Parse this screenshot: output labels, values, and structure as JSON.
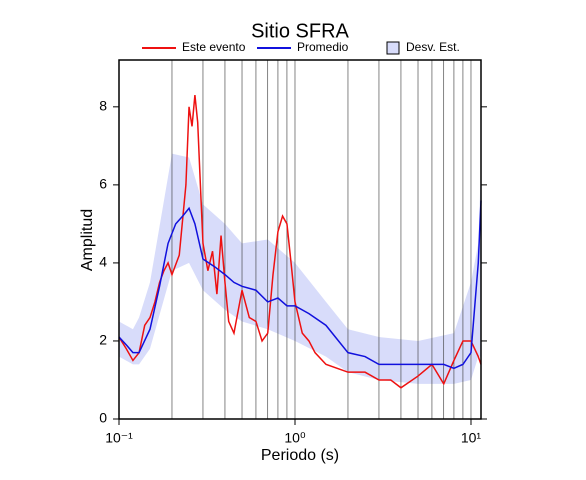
{
  "chart_data": {
    "type": "line",
    "title": "Sitio SFRA",
    "x_label": "Periodo (s)",
    "y_label": "Amplitud",
    "x_scale": "log",
    "xlim": [
      0.1,
      11.4
    ],
    "ylim": [
      0,
      9.2
    ],
    "xticks": [
      {
        "value": 0.1,
        "label": "10⁻¹"
      },
      {
        "value": 1,
        "label": "10⁰"
      },
      {
        "value": 10,
        "label": "10¹"
      }
    ],
    "x_grid": [
      0.1,
      0.2,
      0.3,
      0.4,
      0.5,
      0.6,
      0.7,
      0.8,
      0.9,
      1,
      2,
      3,
      4,
      5,
      6,
      7,
      8,
      9,
      10
    ],
    "yticks": [
      0,
      2,
      4,
      6,
      8
    ],
    "legend": "top",
    "band": {
      "name": "Desv. Est.",
      "color": "#d8dcfa",
      "x": [
        0.1,
        0.12,
        0.13,
        0.15,
        0.2,
        0.25,
        0.3,
        0.4,
        0.5,
        0.7,
        1,
        1.5,
        2,
        3,
        5,
        8,
        10,
        11,
        11.4
      ],
      "lower": [
        1.6,
        1.4,
        1.4,
        1.8,
        3.8,
        4.0,
        3.3,
        2.8,
        2.5,
        2.3,
        2.0,
        1.6,
        1.2,
        1.0,
        0.9,
        0.9,
        1.0,
        1.6,
        1.6
      ],
      "upper": [
        2.5,
        2.3,
        2.6,
        3.5,
        6.8,
        6.7,
        5.5,
        5.0,
        4.5,
        4.6,
        4.0,
        3.0,
        2.3,
        2.1,
        2.0,
        2.2,
        3.5,
        4.5,
        6.5
      ]
    },
    "series": [
      {
        "name": "Este evento",
        "color": "#ee1111",
        "x": [
          0.1,
          0.11,
          0.12,
          0.13,
          0.14,
          0.15,
          0.16,
          0.17,
          0.18,
          0.19,
          0.2,
          0.22,
          0.24,
          0.25,
          0.26,
          0.27,
          0.28,
          0.29,
          0.3,
          0.32,
          0.34,
          0.36,
          0.38,
          0.4,
          0.42,
          0.45,
          0.5,
          0.55,
          0.6,
          0.65,
          0.7,
          0.75,
          0.8,
          0.85,
          0.9,
          0.95,
          1.0,
          1.1,
          1.2,
          1.3,
          1.5,
          2,
          2.5,
          3,
          3.5,
          4,
          5,
          6,
          7,
          8,
          9,
          10,
          11,
          11.4
        ],
        "values": [
          2.1,
          1.8,
          1.5,
          1.7,
          2.4,
          2.6,
          3.0,
          3.5,
          3.8,
          4.0,
          3.7,
          4.2,
          6.0,
          8.0,
          7.5,
          8.3,
          7.6,
          6.0,
          4.5,
          3.8,
          4.3,
          3.2,
          4.7,
          3.5,
          2.5,
          2.2,
          3.3,
          2.6,
          2.5,
          2.0,
          2.2,
          3.7,
          4.8,
          5.2,
          5.0,
          4.0,
          3.0,
          2.2,
          2.0,
          1.7,
          1.4,
          1.2,
          1.2,
          1.0,
          1.0,
          0.8,
          1.1,
          1.4,
          0.9,
          1.5,
          2.0,
          2.0,
          1.6,
          1.4
        ]
      },
      {
        "name": "Promedio",
        "color": "#1111dd",
        "x": [
          0.1,
          0.11,
          0.12,
          0.13,
          0.15,
          0.17,
          0.19,
          0.21,
          0.23,
          0.25,
          0.27,
          0.3,
          0.35,
          0.4,
          0.45,
          0.5,
          0.6,
          0.7,
          0.8,
          0.9,
          1,
          1.2,
          1.5,
          2,
          2.5,
          3,
          4,
          5,
          7,
          8,
          9,
          10,
          11,
          11.4
        ],
        "values": [
          2.1,
          1.9,
          1.7,
          1.7,
          2.3,
          3.4,
          4.5,
          5.0,
          5.2,
          5.4,
          5.0,
          4.1,
          3.9,
          3.7,
          3.5,
          3.4,
          3.3,
          3.0,
          3.1,
          2.9,
          2.9,
          2.7,
          2.4,
          1.7,
          1.6,
          1.4,
          1.4,
          1.4,
          1.4,
          1.3,
          1.4,
          1.7,
          4.0,
          5.6
        ]
      }
    ]
  }
}
